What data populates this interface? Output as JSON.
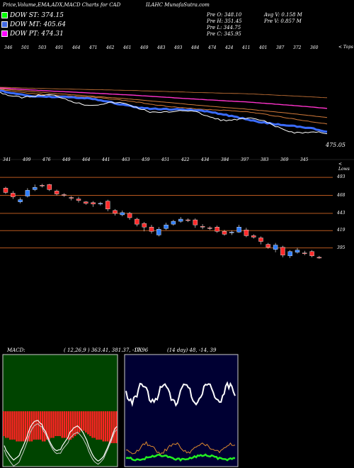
{
  "header": {
    "title": "Price,Volume,EMA,ADX,MACD Charts for CAD",
    "symbol_line": "ILAHC MunafaSutra.com",
    "prev_o": "Pre   O: 348.10",
    "prev_h": "Pre   H: 351.45",
    "prev_l": "Pre   L: 344.75",
    "prev_c": "Pre   C: 345.95",
    "avg_v": "Avg V: 0.158  M",
    "pre_v": "Pre   V: 0.857 M"
  },
  "legend": [
    {
      "label": "DOW ST: 374.15",
      "color": "#00ff00"
    },
    {
      "label": "DOW MT: 405.64",
      "color": "#4169e1"
    },
    {
      "label": "DOW PT: 474.31",
      "color": "#ff00ff"
    }
  ],
  "colors": {
    "st": "#2fe04a",
    "mt": "#3b6cff",
    "pt": "#ff33cc",
    "ema_other": "#d27a3a",
    "up": "#2e7dff",
    "down": "#ff2a2a",
    "hline": "#b8581f",
    "adx_plus": "#ffffff",
    "adx_minus": "#e08a2e",
    "adx": "#22ee22",
    "macd_hist": "#ff2222"
  },
  "ema_panel": {
    "top_prices": [
      "346",
      "501",
      "503",
      "491",
      "464",
      "471",
      "462",
      "461",
      "469",
      "483",
      "493",
      "484",
      "474",
      "424",
      "411",
      "401",
      "387",
      "372",
      "360"
    ],
    "right_tag": "< Tops",
    "bottom_prices": [
      "341",
      "499",
      "476",
      "449",
      "464",
      "441",
      "463",
      "459",
      "451",
      "422",
      "434",
      "384",
      "397",
      "383",
      "369",
      "345"
    ],
    "bottom_tag": "< Lows",
    "last_value": "475.05"
  },
  "price_panel": {
    "levels": [
      "493",
      "468",
      "443",
      "419",
      "395"
    ]
  },
  "macd": {
    "label": "MACD:",
    "values": "( 12,26,9 ) 363.41,  381.37,  -17.96"
  },
  "adx": {
    "label": "DX",
    "values": "(14 day) 48, -14, 39"
  },
  "chart_data": [
    {
      "type": "line",
      "title": "EMA",
      "series": [
        {
          "name": "DOW ST",
          "color": "#00ff00"
        },
        {
          "name": "DOW MT",
          "color": "#4169e1"
        },
        {
          "name": "DOW PT",
          "color": "#ff00ff"
        }
      ]
    },
    {
      "type": "candlestick",
      "title": "Price",
      "ylevels": [
        493,
        468,
        443,
        419,
        395
      ],
      "candles": [
        {
          "o": 478,
          "c": 472,
          "h": 480,
          "l": 470
        },
        {
          "o": 471,
          "c": 466,
          "h": 474,
          "l": 463
        },
        {
          "o": 459,
          "c": 462,
          "h": 465,
          "l": 457
        },
        {
          "o": 467,
          "c": 475,
          "h": 478,
          "l": 465
        },
        {
          "o": 476,
          "c": 479,
          "h": 483,
          "l": 474
        },
        {
          "o": 482,
          "c": 481,
          "h": 484,
          "l": 479
        },
        {
          "o": 483,
          "c": 476,
          "h": 484,
          "l": 474
        },
        {
          "o": 474,
          "c": 470,
          "h": 476,
          "l": 468
        },
        {
          "o": 469,
          "c": 468,
          "h": 471,
          "l": 466
        },
        {
          "o": 465,
          "c": 464,
          "h": 467,
          "l": 461
        },
        {
          "o": 463,
          "c": 461,
          "h": 466,
          "l": 458
        },
        {
          "o": 459,
          "c": 457,
          "h": 460,
          "l": 455
        },
        {
          "o": 458,
          "c": 456,
          "h": 460,
          "l": 452
        },
        {
          "o": 456,
          "c": 457,
          "h": 459,
          "l": 454
        },
        {
          "o": 460,
          "c": 449,
          "h": 462,
          "l": 446
        },
        {
          "o": 447,
          "c": 443,
          "h": 449,
          "l": 440
        },
        {
          "o": 441,
          "c": 444,
          "h": 447,
          "l": 439
        },
        {
          "o": 443,
          "c": 437,
          "h": 445,
          "l": 434
        },
        {
          "o": 435,
          "c": 428,
          "h": 437,
          "l": 425
        },
        {
          "o": 429,
          "c": 424,
          "h": 431,
          "l": 418
        },
        {
          "o": 424,
          "c": 418,
          "h": 427,
          "l": 415
        },
        {
          "o": 413,
          "c": 421,
          "h": 424,
          "l": 411
        },
        {
          "o": 422,
          "c": 427,
          "h": 430,
          "l": 420
        },
        {
          "o": 428,
          "c": 432,
          "h": 434,
          "l": 426
        },
        {
          "o": 432,
          "c": 435,
          "h": 438,
          "l": 430
        },
        {
          "o": 434,
          "c": 434,
          "h": 436,
          "l": 431
        },
        {
          "o": 434,
          "c": 427,
          "h": 436,
          "l": 423
        },
        {
          "o": 425,
          "c": 424,
          "h": 428,
          "l": 421
        },
        {
          "o": 423,
          "c": 423,
          "h": 425,
          "l": 420
        },
        {
          "o": 424,
          "c": 418,
          "h": 426,
          "l": 416
        },
        {
          "o": 418,
          "c": 414,
          "h": 420,
          "l": 412
        },
        {
          "o": 416,
          "c": 417,
          "h": 419,
          "l": 413
        },
        {
          "o": 417,
          "c": 424,
          "h": 427,
          "l": 416
        },
        {
          "o": 420,
          "c": 412,
          "h": 423,
          "l": 410
        },
        {
          "o": 412,
          "c": 410,
          "h": 414,
          "l": 408
        },
        {
          "o": 409,
          "c": 404,
          "h": 411,
          "l": 400
        },
        {
          "o": 400,
          "c": 396,
          "h": 402,
          "l": 394
        },
        {
          "o": 393,
          "c": 399,
          "h": 402,
          "l": 389
        },
        {
          "o": 396,
          "c": 385,
          "h": 398,
          "l": 382
        },
        {
          "o": 384,
          "c": 390,
          "h": 392,
          "l": 381
        },
        {
          "o": 389,
          "c": 392,
          "h": 395,
          "l": 387
        },
        {
          "o": 388,
          "c": 388,
          "h": 391,
          "l": 385
        },
        {
          "o": 390,
          "c": 384,
          "h": 392,
          "l": 382
        },
        {
          "o": 382,
          "c": 381,
          "h": 384,
          "l": 380
        }
      ]
    },
    {
      "type": "bar",
      "title": "MACD",
      "values": [
        -14,
        -15,
        -15,
        -16,
        -16,
        -16,
        -17,
        -17,
        -17,
        -17,
        -17,
        -17,
        -17,
        -17,
        -16,
        -16,
        -16,
        -16,
        -17,
        -17,
        -16,
        -16,
        -15,
        -15,
        -14,
        -14,
        -14,
        -15,
        -15,
        -15,
        -16,
        -16,
        -15,
        -14,
        -13,
        -12,
        -11,
        -11,
        -12,
        -13,
        -14,
        -15,
        -15,
        -16,
        -16,
        -16,
        -17,
        -17,
        -17,
        -18,
        -18,
        -18,
        -18
      ]
    },
    {
      "type": "line",
      "title": "ADX",
      "series": [
        {
          "name": "+DI",
          "color": "#ffffff"
        },
        {
          "name": "-DI",
          "color": "#e08a2e"
        },
        {
          "name": "ADX",
          "color": "#22ee22"
        }
      ]
    }
  ]
}
